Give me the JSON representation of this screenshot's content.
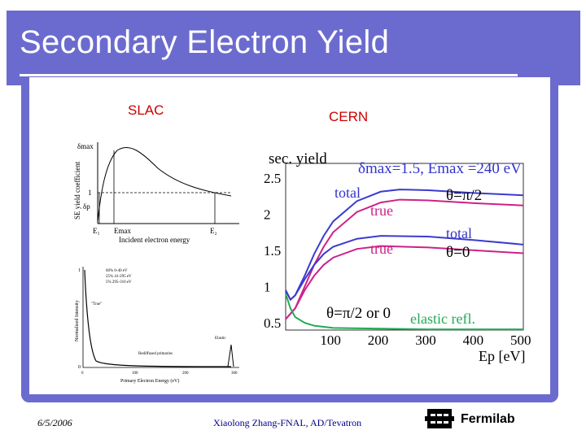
{
  "slide": {
    "title": "Secondary Electron Yield",
    "label_left": "SLAC",
    "label_right": "CERN",
    "footer_date": "6/5/2006",
    "footer_author": "Xiaolong Zhang-FNAL, AD/Tevatron",
    "logo_text": "Fermilab"
  },
  "colors": {
    "frame": "#6b6bcf",
    "accent_red": "#cc0000",
    "series_blue": "#3b3bcf",
    "series_pink": "#cc2288",
    "series_green": "#22aa55"
  },
  "slac_top": {
    "ylabel": "SE yield coefficient",
    "xlabel": "Incident electron energy",
    "y_ticks": [
      "δmax",
      "1",
      "δp"
    ],
    "x_ticks": [
      "E₁",
      "Emax",
      "E₂"
    ]
  },
  "slac_bottom": {
    "ylabel": "Normalized Intensity",
    "xlabel": "Primary Electron Energy (eV)",
    "legend": [
      "60%  0-40 eV",
      "25%  41-295 eV",
      "5%  295-310 eV"
    ],
    "annotations": [
      "\"True\"",
      "Rediffused primaries",
      "Elastic"
    ],
    "x_ticks": [
      "0",
      "100",
      "200",
      "300"
    ],
    "y_ticks": [
      "0",
      "1"
    ]
  },
  "chart_data": {
    "type": "line",
    "ylabel": "sec. yield",
    "xlabel": "Ep [eV]",
    "xlim": [
      0,
      500
    ],
    "ylim": [
      0.4,
      2.7
    ],
    "x_ticks": [
      "100",
      "200",
      "300",
      "400",
      "500"
    ],
    "y_ticks": [
      "0.5",
      "1",
      "1.5",
      "2",
      "2.5"
    ],
    "header_annotation": "δmax=1.5, Emax =240 eV",
    "annotations": [
      "total",
      "true",
      "θ=π/2",
      "total",
      "true",
      "θ=0",
      "θ=π/2 or 0",
      "elastic refl."
    ],
    "series": [
      {
        "values": [
          [
            0,
            0.95
          ],
          [
            10,
            0.82
          ],
          [
            20,
            0.88
          ],
          [
            40,
            1.15
          ],
          [
            60,
            1.45
          ],
          [
            80,
            1.7
          ],
          [
            100,
            1.9
          ],
          [
            150,
            2.18
          ],
          [
            200,
            2.31
          ],
          [
            240,
            2.34
          ],
          [
            300,
            2.33
          ],
          [
            400,
            2.29
          ],
          [
            500,
            2.26
          ]
        ]
      },
      {
        "values": [
          [
            0,
            0.55
          ],
          [
            20,
            0.7
          ],
          [
            40,
            1.0
          ],
          [
            60,
            1.3
          ],
          [
            80,
            1.55
          ],
          [
            100,
            1.75
          ],
          [
            150,
            2.03
          ],
          [
            200,
            2.16
          ],
          [
            240,
            2.2
          ],
          [
            300,
            2.19
          ],
          [
            400,
            2.15
          ],
          [
            500,
            2.12
          ]
        ]
      },
      {
        "values": [
          [
            0,
            0.95
          ],
          [
            10,
            0.82
          ],
          [
            20,
            0.88
          ],
          [
            40,
            1.1
          ],
          [
            60,
            1.3
          ],
          [
            80,
            1.45
          ],
          [
            100,
            1.55
          ],
          [
            150,
            1.66
          ],
          [
            200,
            1.7
          ],
          [
            300,
            1.69
          ],
          [
            400,
            1.64
          ],
          [
            500,
            1.58
          ]
        ]
      },
      {
        "values": [
          [
            0,
            0.55
          ],
          [
            20,
            0.7
          ],
          [
            40,
            0.95
          ],
          [
            60,
            1.15
          ],
          [
            80,
            1.3
          ],
          [
            100,
            1.4
          ],
          [
            150,
            1.52
          ],
          [
            200,
            1.56
          ],
          [
            300,
            1.54
          ],
          [
            400,
            1.5
          ],
          [
            500,
            1.46
          ]
        ]
      },
      {
        "values": [
          [
            0,
            0.9
          ],
          [
            10,
            0.7
          ],
          [
            20,
            0.58
          ],
          [
            40,
            0.5
          ],
          [
            60,
            0.46
          ],
          [
            100,
            0.43
          ],
          [
            200,
            0.42
          ],
          [
            300,
            0.41
          ],
          [
            500,
            0.41
          ]
        ]
      }
    ]
  }
}
